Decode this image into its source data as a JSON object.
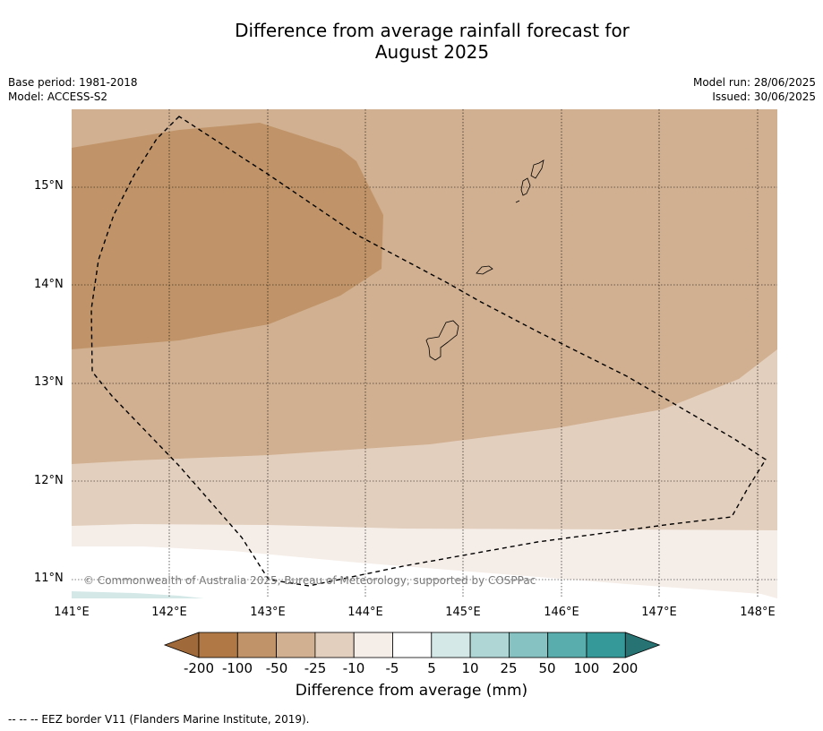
{
  "title_line1": "Difference from average rainfall forecast for",
  "title_line2": "August 2025",
  "base_period": "Base period: 1981-2018",
  "model": "Model: ACCESS-S2",
  "model_run": "Model run: 28/06/2025",
  "issued": "Issued: 30/06/2025",
  "copyright": "© Commonwealth of Australia 2025, Bureau of Meteorology, supported by COSPPac",
  "lat_labels": [
    "15°N",
    "14°N",
    "13°N",
    "12°N",
    "11°N"
  ],
  "lon_labels": [
    "141°E",
    "142°E",
    "143°E",
    "144°E",
    "145°E",
    "146°E",
    "147°E",
    "148°E"
  ],
  "colorbar": {
    "title": "Difference from average (mm)",
    "ticks": [
      "-200",
      "-100",
      "-50",
      "-25",
      "-10",
      "-5",
      "5",
      "10",
      "25",
      "50",
      "100",
      "200"
    ],
    "colors": [
      "#a0693a",
      "#b07845",
      "#c09468",
      "#d1b091",
      "#e3cfbd",
      "#f5ede8",
      "#ffffff",
      "#d4e8e8",
      "#afd6d5",
      "#86c2c1",
      "#5aadad",
      "#35999a",
      "#277373"
    ]
  },
  "footnote": "--  --  -- EEZ border V11 (Flanders Marine Institute, 2019)."
}
